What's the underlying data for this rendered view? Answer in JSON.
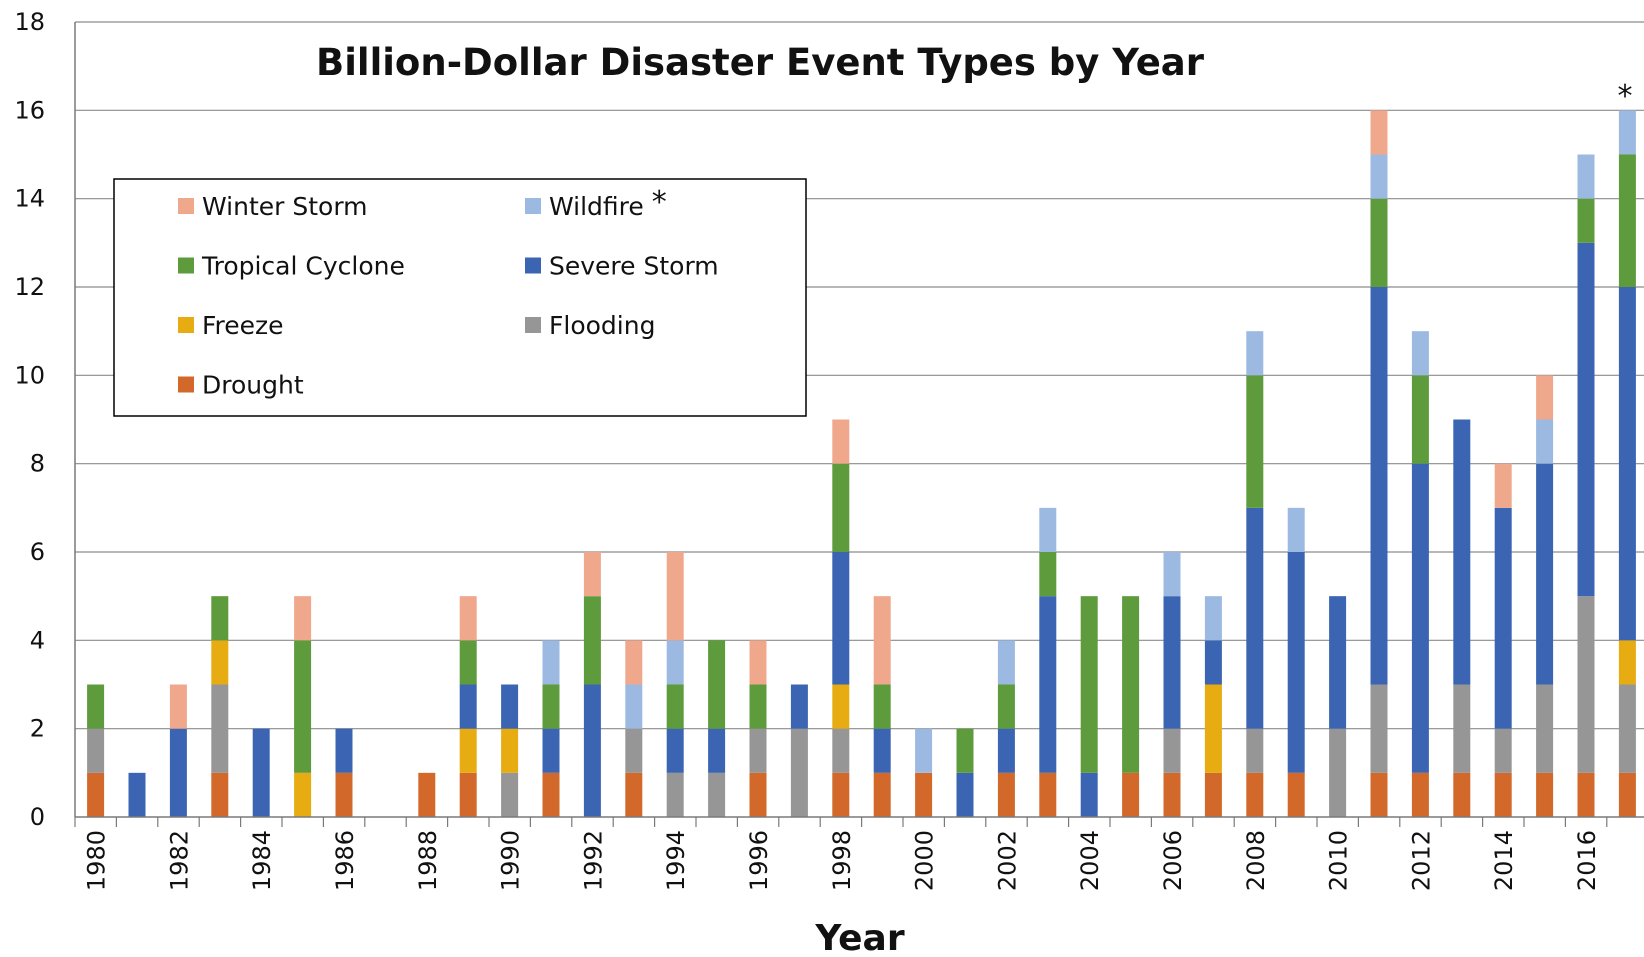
{
  "chart_data": {
    "type": "bar",
    "stacked": true,
    "title": "Billion-Dollar Disaster Event Types by Year",
    "xlabel": "Year",
    "ylabel": "",
    "ylim": [
      0,
      18
    ],
    "yticks": [
      0,
      2,
      4,
      6,
      8,
      10,
      12,
      14,
      16,
      18
    ],
    "grid": true,
    "legend_position": "upper-left",
    "legend_note": "*",
    "latest_year_note": "*",
    "categories": [
      1980,
      1981,
      1982,
      1983,
      1984,
      1985,
      1986,
      1987,
      1988,
      1989,
      1990,
      1991,
      1992,
      1993,
      1994,
      1995,
      1996,
      1997,
      1998,
      1999,
      2000,
      2001,
      2002,
      2003,
      2004,
      2005,
      2006,
      2007,
      2008,
      2009,
      2010,
      2011,
      2012,
      2013,
      2014,
      2015,
      2016,
      2017
    ],
    "xtick_labels": [
      "1980",
      "1982",
      "1984",
      "1986",
      "1988",
      "1990",
      "1992",
      "1994",
      "1996",
      "1998",
      "2000",
      "2002",
      "2004",
      "2006",
      "2008",
      "2010",
      "2012",
      "2014",
      "2016"
    ],
    "series": [
      {
        "name": "Drought",
        "color": "#D2692A",
        "values": [
          1,
          0,
          0,
          1,
          0,
          0,
          1,
          0,
          1,
          1,
          0,
          1,
          0,
          1,
          0,
          0,
          1,
          0,
          1,
          1,
          1,
          0,
          1,
          1,
          0,
          1,
          1,
          1,
          1,
          1,
          0,
          1,
          1,
          1,
          1,
          1,
          1,
          1
        ]
      },
      {
        "name": "Flooding",
        "color": "#969696",
        "values": [
          1,
          0,
          0,
          2,
          0,
          0,
          0,
          0,
          0,
          0,
          1,
          0,
          0,
          1,
          1,
          1,
          1,
          2,
          1,
          0,
          0,
          0,
          0,
          0,
          0,
          0,
          1,
          0,
          1,
          0,
          2,
          2,
          0,
          2,
          1,
          2,
          4,
          2
        ]
      },
      {
        "name": "Freeze",
        "color": "#E6AC12",
        "values": [
          0,
          0,
          0,
          1,
          0,
          1,
          0,
          0,
          0,
          1,
          1,
          0,
          0,
          0,
          0,
          0,
          0,
          0,
          1,
          0,
          0,
          0,
          0,
          0,
          0,
          0,
          0,
          2,
          0,
          0,
          0,
          0,
          0,
          0,
          0,
          0,
          0,
          1
        ]
      },
      {
        "name": "Severe Storm",
        "color": "#3B65B3",
        "values": [
          0,
          1,
          2,
          0,
          2,
          0,
          1,
          0,
          0,
          1,
          1,
          1,
          3,
          0,
          1,
          1,
          0,
          1,
          3,
          1,
          0,
          1,
          1,
          4,
          1,
          0,
          3,
          1,
          5,
          5,
          3,
          9,
          7,
          6,
          5,
          5,
          8,
          8
        ]
      },
      {
        "name": "Tropical Cyclone",
        "color": "#5E9B3C",
        "values": [
          1,
          0,
          0,
          1,
          0,
          3,
          0,
          0,
          0,
          1,
          0,
          1,
          2,
          0,
          1,
          2,
          1,
          0,
          2,
          1,
          0,
          1,
          1,
          1,
          4,
          4,
          0,
          0,
          3,
          0,
          0,
          2,
          2,
          0,
          0,
          0,
          1,
          3
        ]
      },
      {
        "name": "Wildfire",
        "color": "#9CBAE1",
        "values": [
          0,
          0,
          0,
          0,
          0,
          0,
          0,
          0,
          0,
          0,
          0,
          1,
          0,
          1,
          1,
          0,
          0,
          0,
          0,
          0,
          1,
          0,
          1,
          1,
          0,
          0,
          1,
          1,
          1,
          1,
          0,
          1,
          1,
          0,
          0,
          1,
          1,
          1
        ]
      },
      {
        "name": "Winter Storm",
        "color": "#F0A88C",
        "values": [
          0,
          0,
          1,
          0,
          0,
          1,
          0,
          0,
          0,
          1,
          0,
          0,
          1,
          1,
          2,
          0,
          1,
          0,
          1,
          2,
          0,
          0,
          0,
          0,
          0,
          0,
          0,
          0,
          0,
          0,
          0,
          1,
          0,
          0,
          1,
          1,
          0,
          0
        ]
      }
    ],
    "legend": [
      {
        "label": "Winter Storm",
        "color": "#F0A88C",
        "note": ""
      },
      {
        "label": "Wildfire",
        "color": "#9CBAE1",
        "note": "*"
      },
      {
        "label": "Tropical Cyclone",
        "color": "#5E9B3C",
        "note": ""
      },
      {
        "label": "Severe Storm",
        "color": "#3B65B3",
        "note": ""
      },
      {
        "label": "Freeze",
        "color": "#E6AC12",
        "note": ""
      },
      {
        "label": "Flooding",
        "color": "#969696",
        "note": ""
      },
      {
        "label": "Drought",
        "color": "#D2692A",
        "note": ""
      }
    ]
  }
}
